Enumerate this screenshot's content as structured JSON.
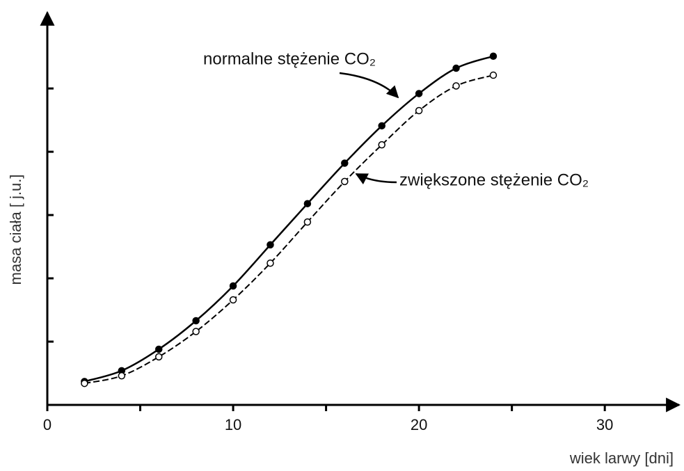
{
  "chart_data": {
    "type": "line",
    "xlabel": "wiek larwy [dni]",
    "ylabel": "masa ciała [ j.u.]",
    "x": [
      2,
      4,
      6,
      8,
      10,
      12,
      14,
      16,
      18,
      20,
      22,
      24
    ],
    "series": [
      {
        "name": "normalne stężenie CO₂",
        "color": "#000000",
        "marker": "filled",
        "dashed": false,
        "values": [
          0.37,
          0.54,
          0.88,
          1.33,
          1.88,
          2.53,
          3.18,
          3.82,
          4.41,
          4.92,
          5.32,
          5.51
        ]
      },
      {
        "name": "zwiększone stężenie CO₂",
        "color": "#000000",
        "marker": "open",
        "dashed": true,
        "values": [
          0.34,
          0.46,
          0.76,
          1.16,
          1.66,
          2.24,
          2.89,
          3.53,
          4.11,
          4.65,
          5.04,
          5.21
        ]
      }
    ],
    "xlim": [
      0,
      34
    ],
    "xticks": [
      0,
      10,
      20,
      30
    ],
    "xticks_minor": [
      5,
      15,
      25
    ],
    "ylim": [
      0,
      6.2
    ],
    "yticks": [
      1,
      2,
      3,
      4,
      5
    ]
  }
}
